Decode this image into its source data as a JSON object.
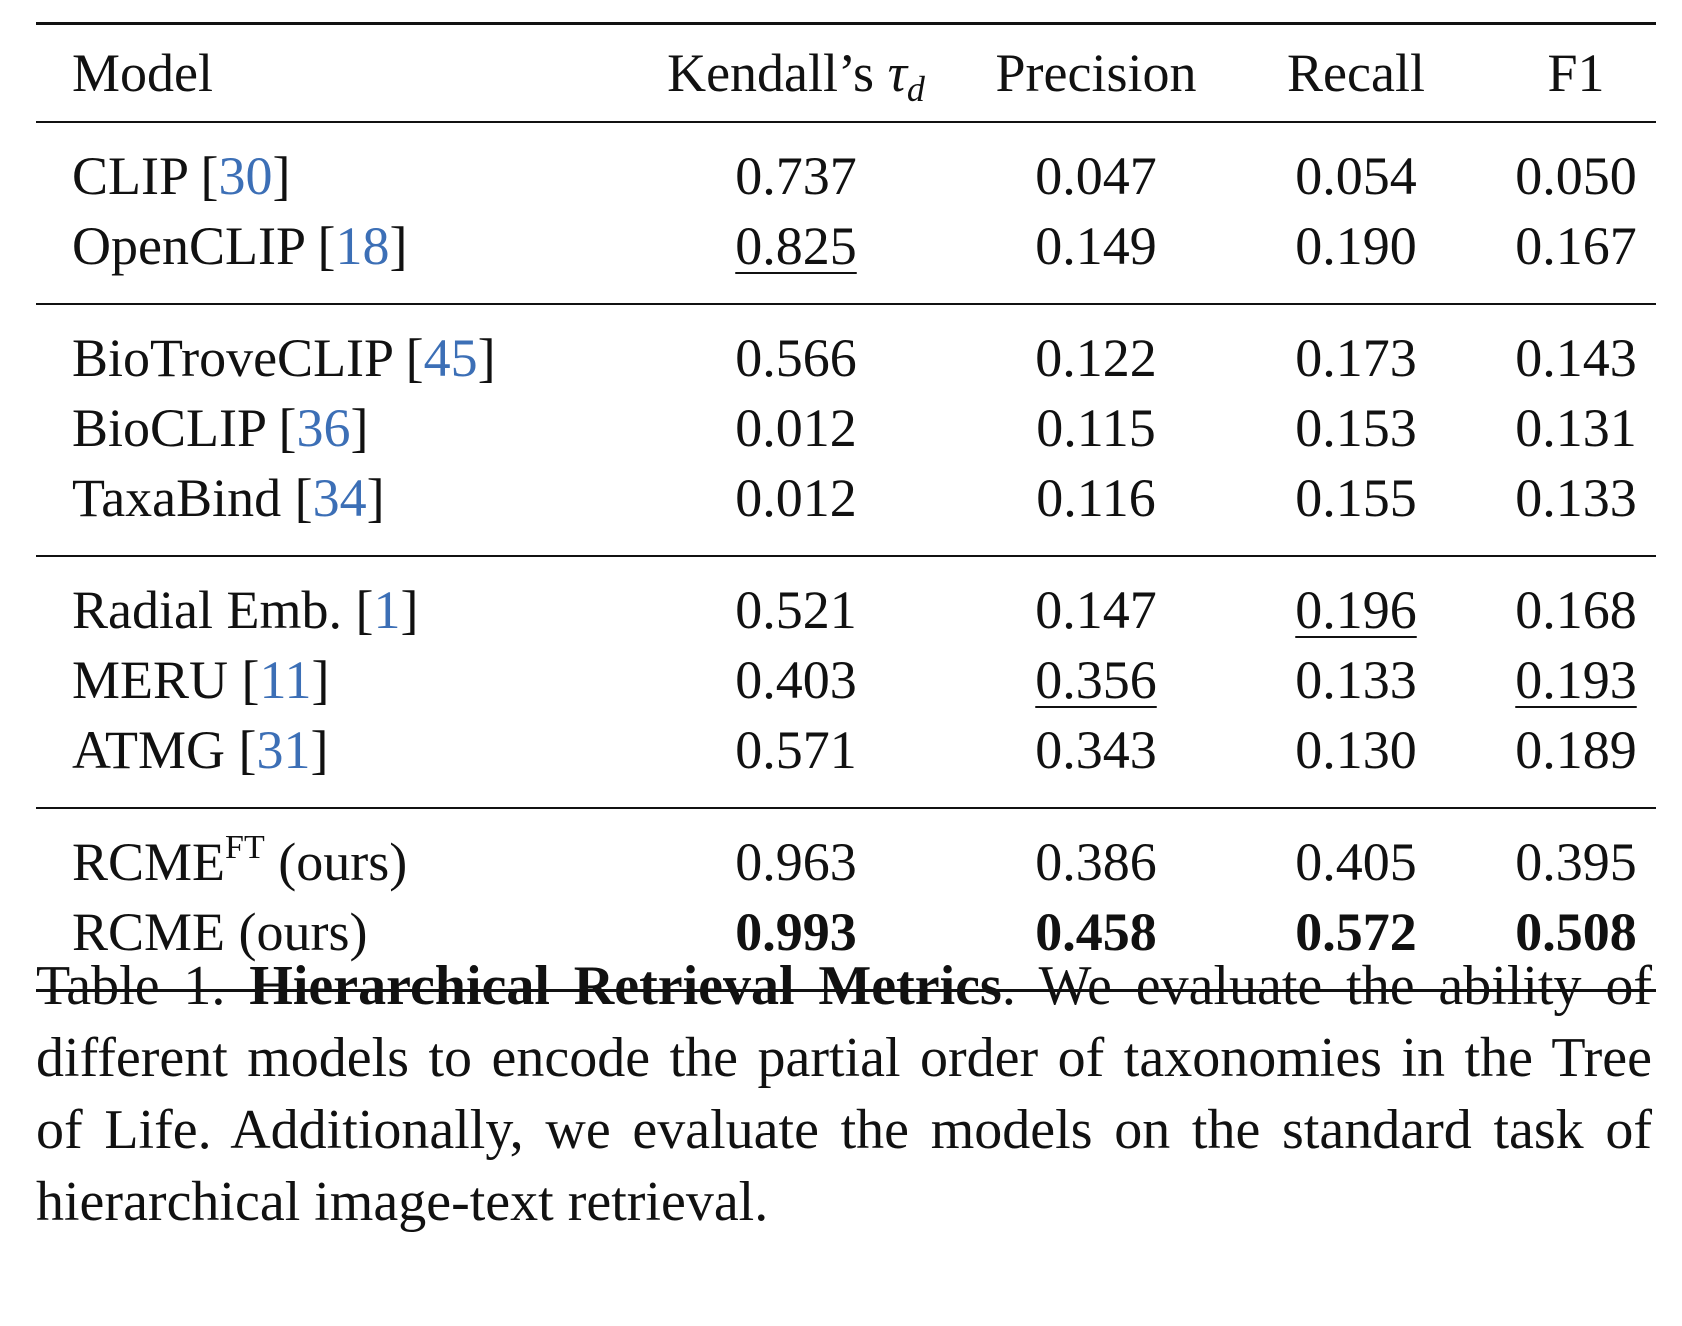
{
  "table": {
    "headers": {
      "model": "Model",
      "kendall_prefix": "Kendall’s ",
      "kendall_symbol": "τ",
      "kendall_sub": "d",
      "precision": "Precision",
      "recall": "Recall",
      "f1": "F1"
    },
    "rows": [
      {
        "model": "CLIP",
        "ref": "30",
        "kendall": "0.737",
        "precision": "0.047",
        "recall": "0.054",
        "f1": "0.050"
      },
      {
        "model": "OpenCLIP",
        "ref": "18",
        "kendall": "0.825",
        "precision": "0.149",
        "recall": "0.190",
        "f1": "0.167"
      },
      {
        "model": "BioTroveCLIP",
        "ref": "45",
        "kendall": "0.566",
        "precision": "0.122",
        "recall": "0.173",
        "f1": "0.143"
      },
      {
        "model": "BioCLIP",
        "ref": "36",
        "kendall": "0.012",
        "precision": "0.115",
        "recall": "0.153",
        "f1": "0.131"
      },
      {
        "model": "TaxaBind",
        "ref": "34",
        "kendall": "0.012",
        "precision": "0.116",
        "recall": "0.155",
        "f1": "0.133"
      },
      {
        "model": "Radial Emb.",
        "ref": "1",
        "kendall": "0.521",
        "precision": "0.147",
        "recall": "0.196",
        "f1": "0.168"
      },
      {
        "model": "MERU",
        "ref": "11",
        "kendall": "0.403",
        "precision": "0.356",
        "recall": "0.133",
        "f1": "0.193"
      },
      {
        "model": "ATMG",
        "ref": "31",
        "kendall": "0.571",
        "precision": "0.343",
        "recall": "0.130",
        "f1": "0.189"
      },
      {
        "model": "RCME",
        "sup": "FT",
        "suffix": " (ours)",
        "kendall": "0.963",
        "precision": "0.386",
        "recall": "0.405",
        "f1": "0.395"
      },
      {
        "model": "RCME",
        "suffix": " (ours)",
        "kendall": "0.993",
        "precision": "0.458",
        "recall": "0.572",
        "f1": "0.508"
      }
    ]
  },
  "caption": {
    "label": "Table 1. ",
    "title": "Hierarchical Retrieval Metrics",
    "body": ". We evaluate the ability of different models to encode the partial order of taxonomies in the Tree of Life. Additionally, we evaluate the models on the standard task of hierarchical image-text retrieval."
  }
}
